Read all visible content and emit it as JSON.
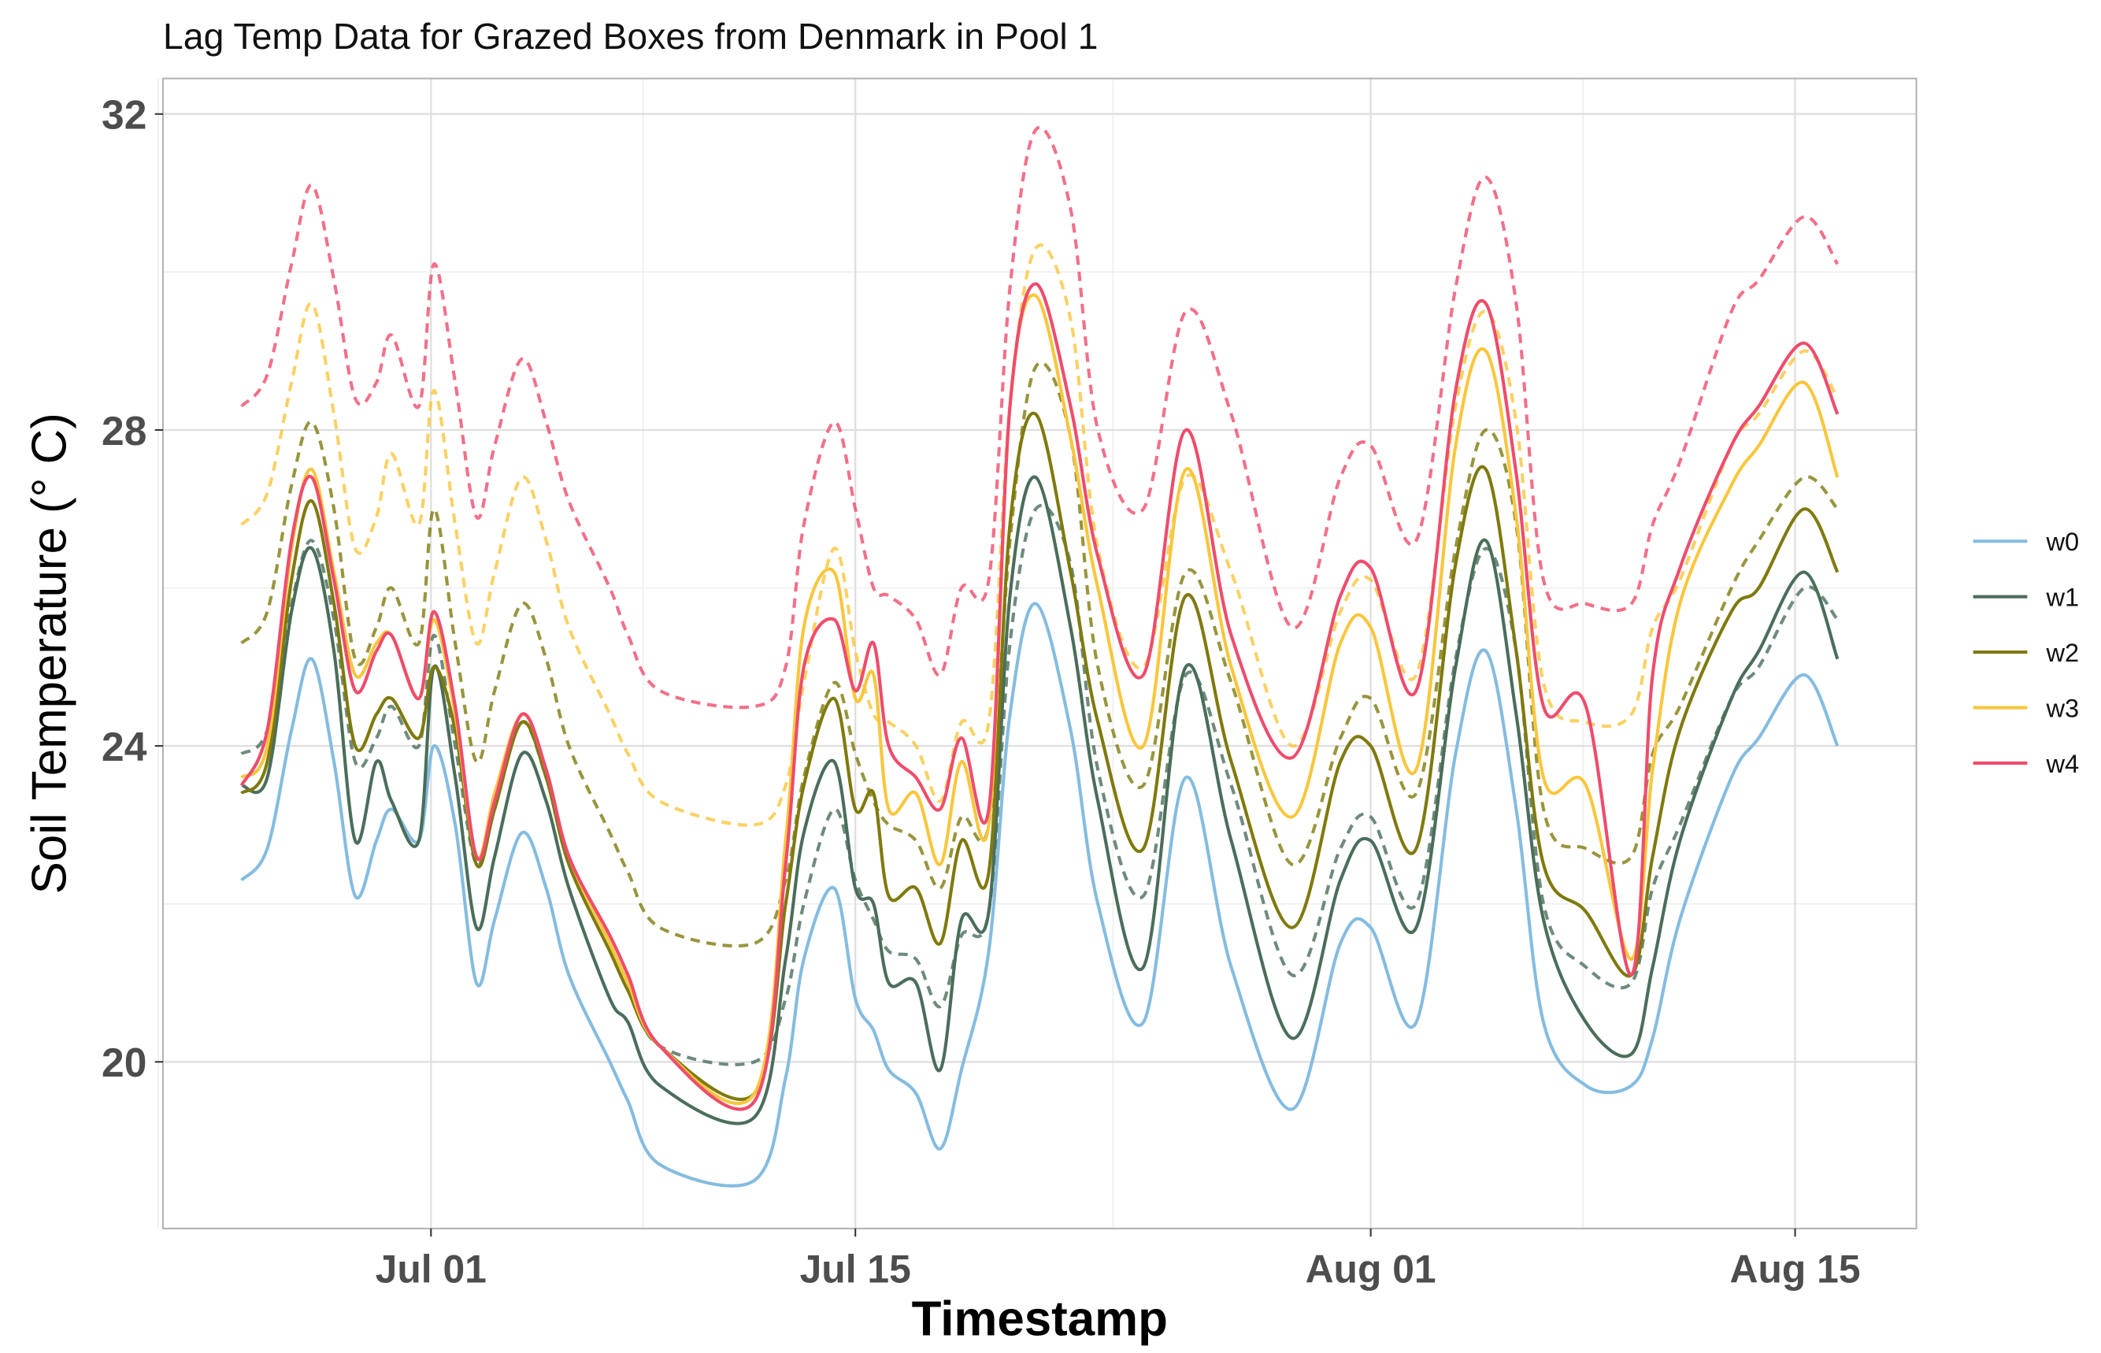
{
  "chart_data": {
    "type": "line",
    "title": "Lag Temp Data for Grazed Boxes from Denmark in Pool 1",
    "x_label": "Timestamp",
    "y_label": "Soil Temperature (° C)",
    "x": [
      -5.25,
      -4.4,
      -3.6,
      -2.93,
      -2.2,
      -1.5,
      -0.8,
      -0.3,
      0.6,
      1.1,
      1.8,
      2.5,
      3.1,
      4.0,
      4.8,
      5.55,
      6.9,
      7.5,
      8.55,
      11.67,
      12.7,
      13.3,
      14.3,
      15.0,
      15.6,
      16.1,
      17.0,
      17.8,
      18.5,
      19.4,
      20.1,
      20.95,
      22.1,
      23.0,
      24.5,
      25.9,
      27.4,
      29.4,
      31.0,
      32.0,
      33.5,
      34.8,
      35.8,
      36.8,
      37.7,
      39.1,
      40.6,
      41.3,
      42.2,
      43.9,
      44.8,
      46.3,
      47.4
    ],
    "series": [
      {
        "color": "#ef4c6c",
        "dash": true,
        "values": [
          28.3,
          28.7,
          30.1,
          31.1,
          29.9,
          28.4,
          28.6,
          29.2,
          28.3,
          30.1,
          28.6,
          26.9,
          27.8,
          28.9,
          28.1,
          27.1,
          26.0,
          25.4,
          24.7,
          24.5,
          25.0,
          26.8,
          28.1,
          27.0,
          26.0,
          25.9,
          25.6,
          24.9,
          26.0,
          26.1,
          29.8,
          31.8,
          30.8,
          28.0,
          27.0,
          29.5,
          28.2,
          25.5,
          27.4,
          27.8,
          26.6,
          29.8,
          31.2,
          29.6,
          26.1,
          25.8,
          25.8,
          26.8,
          27.6,
          29.5,
          29.9,
          30.7,
          30.1
        ]
      },
      {
        "color": "#f9c63d",
        "dash": true,
        "values": [
          26.8,
          27.2,
          28.6,
          29.6,
          28.2,
          26.5,
          26.9,
          27.7,
          26.8,
          28.5,
          26.8,
          25.3,
          26.2,
          27.4,
          26.6,
          25.5,
          24.4,
          23.9,
          23.3,
          23.0,
          23.5,
          24.8,
          26.5,
          25.2,
          24.4,
          24.3,
          24.0,
          23.3,
          24.3,
          24.3,
          28.3,
          30.3,
          29.4,
          26.5,
          25.0,
          27.4,
          26.2,
          24.0,
          25.7,
          26.1,
          24.9,
          28.3,
          29.5,
          28.1,
          24.8,
          24.3,
          24.4,
          25.5,
          26.1,
          27.8,
          28.2,
          29.0,
          28.4
        ]
      },
      {
        "color": "#7f7a0d",
        "dash": true,
        "values": [
          25.3,
          25.7,
          27.3,
          28.1,
          27.0,
          25.1,
          25.5,
          26.0,
          25.3,
          27.0,
          25.3,
          23.8,
          24.7,
          25.8,
          25.1,
          24.0,
          22.9,
          22.4,
          21.7,
          21.5,
          22.3,
          23.6,
          24.8,
          23.9,
          23.3,
          23.0,
          22.8,
          22.2,
          23.1,
          23.0,
          26.6,
          28.8,
          27.9,
          25.0,
          23.5,
          26.2,
          24.8,
          22.5,
          24.1,
          24.6,
          23.4,
          26.5,
          28.0,
          26.8,
          23.2,
          22.7,
          22.6,
          23.9,
          24.5,
          26.0,
          26.6,
          27.4,
          27.0
        ]
      },
      {
        "color": "#4a6e5a",
        "dash": true,
        "values": [
          23.9,
          24.2,
          25.8,
          26.6,
          25.6,
          23.8,
          24.1,
          24.5,
          24.0,
          25.4,
          24.0,
          22.5,
          23.3,
          24.3,
          23.6,
          22.6,
          21.5,
          21.0,
          20.2,
          20.0,
          20.8,
          22.0,
          23.2,
          22.3,
          21.8,
          21.4,
          21.3,
          20.7,
          21.6,
          21.9,
          25.3,
          27.0,
          26.3,
          23.7,
          22.1,
          24.9,
          23.5,
          21.1,
          22.7,
          23.1,
          22.0,
          25.1,
          26.5,
          25.2,
          22.0,
          21.2,
          21.0,
          22.2,
          23.0,
          24.6,
          25.0,
          26.0,
          25.6
        ]
      },
      {
        "name": "w0",
        "color": "#85bce0",
        "values": [
          22.3,
          22.7,
          24.2,
          25.1,
          23.8,
          22.1,
          22.8,
          23.2,
          22.8,
          24.0,
          23.0,
          21.0,
          21.8,
          22.9,
          22.2,
          21.1,
          20.0,
          19.5,
          18.7,
          18.5,
          19.8,
          21.3,
          22.2,
          20.8,
          20.4,
          19.9,
          19.6,
          18.9,
          19.9,
          21.4,
          24.4,
          25.8,
          24.2,
          22.0,
          20.5,
          23.6,
          21.2,
          19.4,
          21.5,
          21.7,
          20.5,
          23.9,
          25.2,
          23.2,
          20.5,
          19.7,
          19.7,
          20.3,
          21.8,
          23.6,
          24.1,
          24.9,
          24.0
        ]
      },
      {
        "name": "w1",
        "color": "#4a6e5a",
        "values": [
          23.5,
          23.6,
          25.7,
          26.5,
          25.2,
          22.8,
          23.8,
          23.3,
          22.8,
          25.0,
          23.6,
          21.7,
          22.6,
          23.9,
          23.3,
          22.2,
          20.8,
          20.5,
          19.7,
          19.3,
          21.3,
          22.9,
          23.8,
          22.2,
          22.0,
          21.0,
          21.0,
          19.9,
          21.8,
          21.9,
          25.9,
          27.4,
          25.5,
          23.3,
          21.2,
          25.0,
          22.8,
          20.3,
          22.3,
          22.8,
          21.7,
          25.0,
          26.6,
          24.4,
          21.8,
          20.5,
          20.1,
          21.2,
          22.8,
          24.6,
          25.2,
          26.2,
          25.1
        ]
      },
      {
        "name": "w2",
        "color": "#7f7a0d",
        "values": [
          23.4,
          23.8,
          26.1,
          27.1,
          25.8,
          24.0,
          24.4,
          24.6,
          24.1,
          25.0,
          24.2,
          22.5,
          23.2,
          24.3,
          23.6,
          22.5,
          21.4,
          20.9,
          20.2,
          19.6,
          22.0,
          23.5,
          24.6,
          23.2,
          23.4,
          22.1,
          22.2,
          21.5,
          22.8,
          22.4,
          26.8,
          28.2,
          26.2,
          24.3,
          22.7,
          25.9,
          23.8,
          21.7,
          23.8,
          24.0,
          22.7,
          26.3,
          27.5,
          25.2,
          22.5,
          21.9,
          21.1,
          22.6,
          24.2,
          25.7,
          26.0,
          27.0,
          26.2
        ]
      },
      {
        "name": "w3",
        "color": "#f9c63d",
        "values": [
          23.6,
          24.0,
          26.5,
          27.5,
          26.2,
          24.9,
          25.3,
          25.4,
          24.6,
          25.6,
          24.4,
          22.6,
          23.4,
          24.4,
          23.7,
          22.6,
          21.5,
          21.0,
          20.2,
          19.6,
          22.8,
          25.5,
          26.2,
          24.6,
          24.9,
          23.2,
          23.4,
          22.5,
          23.8,
          23.0,
          28.3,
          29.7,
          27.9,
          26.0,
          24.0,
          27.5,
          25.0,
          23.1,
          25.3,
          25.5,
          23.7,
          27.8,
          29.0,
          26.9,
          23.6,
          23.5,
          21.3,
          23.7,
          25.8,
          27.3,
          27.8,
          28.6,
          27.4
        ]
      },
      {
        "name": "w4",
        "color": "#ef4c6c",
        "values": [
          23.5,
          24.2,
          26.6,
          27.4,
          26.1,
          24.7,
          25.2,
          25.4,
          24.6,
          25.7,
          24.5,
          22.6,
          23.3,
          24.4,
          23.7,
          22.6,
          21.6,
          21.1,
          20.2,
          19.5,
          22.5,
          25.0,
          25.6,
          24.7,
          25.3,
          24.0,
          23.6,
          23.2,
          24.1,
          23.2,
          28.3,
          29.85,
          28.3,
          26.4,
          24.9,
          28.0,
          25.4,
          23.85,
          25.9,
          26.25,
          24.7,
          28.5,
          29.6,
          27.45,
          24.5,
          24.5,
          21.1,
          24.9,
          26.25,
          27.8,
          28.3,
          29.1,
          28.2
        ]
      }
    ],
    "xlim": [
      -7.84,
      50.0
    ],
    "xticks": [
      {
        "value": 1,
        "label": "Jul 01"
      },
      {
        "value": 15,
        "label": "Jul 15"
      },
      {
        "value": 32,
        "label": "Aug 01"
      },
      {
        "value": 46,
        "label": "Aug 15"
      }
    ],
    "xminorticks": [
      -8,
      8,
      23.5,
      39
    ],
    "ylim": [
      17.89,
      32.45
    ],
    "yticks": [
      20,
      24,
      28,
      32
    ],
    "yminorticks": [
      22,
      26,
      30
    ],
    "grid": true,
    "legend": "right"
  }
}
